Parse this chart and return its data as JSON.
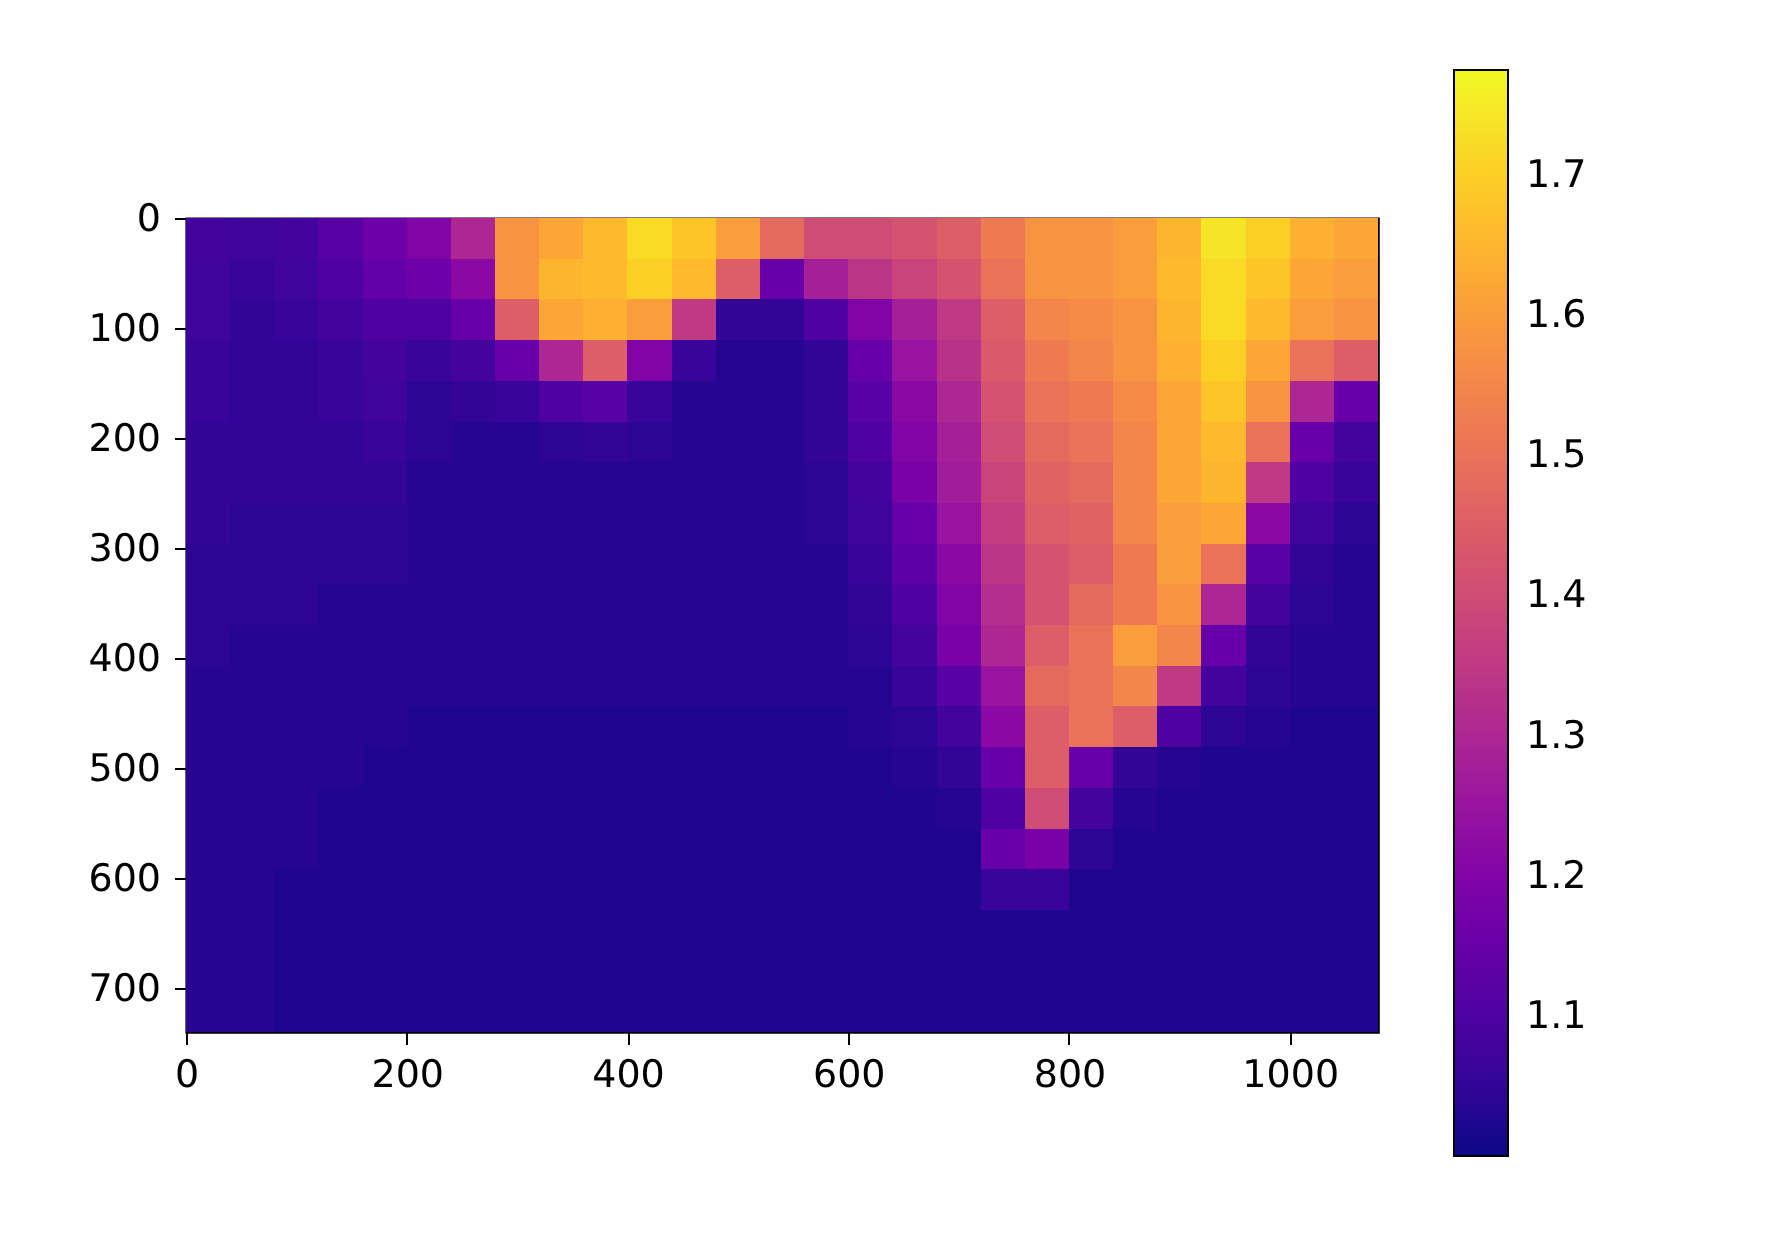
{
  "chart_data": {
    "type": "heatmap",
    "xlim": [
      0,
      1080
    ],
    "ylim": [
      740,
      0
    ],
    "xticks": [
      0,
      200,
      400,
      600,
      800,
      1000
    ],
    "yticks": [
      0,
      100,
      200,
      300,
      400,
      500,
      600,
      700
    ],
    "clim": [
      1.0,
      1.775
    ],
    "cticks": [
      1.1,
      1.2,
      1.3,
      1.4,
      1.5,
      1.6,
      1.7
    ],
    "cells": [
      [
        1.08,
        1.07,
        1.08,
        1.12,
        1.16,
        1.2,
        1.3,
        1.58,
        1.62,
        1.66,
        1.72,
        1.68,
        1.6,
        1.48,
        1.4,
        1.4,
        1.42,
        1.45,
        1.52,
        1.58,
        1.58,
        1.6,
        1.65,
        1.74,
        1.7,
        1.64,
        1.62
      ],
      [
        1.07,
        1.06,
        1.07,
        1.1,
        1.14,
        1.16,
        1.22,
        1.58,
        1.65,
        1.66,
        1.7,
        1.66,
        1.45,
        1.15,
        1.28,
        1.34,
        1.38,
        1.42,
        1.5,
        1.58,
        1.58,
        1.6,
        1.66,
        1.72,
        1.68,
        1.62,
        1.6
      ],
      [
        1.07,
        1.05,
        1.06,
        1.08,
        1.1,
        1.1,
        1.15,
        1.45,
        1.62,
        1.64,
        1.6,
        1.35,
        1.05,
        1.05,
        1.1,
        1.2,
        1.28,
        1.35,
        1.45,
        1.55,
        1.56,
        1.58,
        1.65,
        1.72,
        1.66,
        1.6,
        1.58
      ],
      [
        1.06,
        1.05,
        1.05,
        1.06,
        1.08,
        1.06,
        1.08,
        1.15,
        1.3,
        1.45,
        1.2,
        1.06,
        1.03,
        1.03,
        1.05,
        1.15,
        1.25,
        1.33,
        1.44,
        1.52,
        1.55,
        1.58,
        1.64,
        1.7,
        1.62,
        1.5,
        1.45
      ],
      [
        1.06,
        1.05,
        1.05,
        1.06,
        1.07,
        1.04,
        1.05,
        1.06,
        1.1,
        1.12,
        1.06,
        1.03,
        1.03,
        1.03,
        1.05,
        1.12,
        1.22,
        1.3,
        1.42,
        1.5,
        1.52,
        1.56,
        1.62,
        1.68,
        1.58,
        1.3,
        1.15
      ],
      [
        1.05,
        1.05,
        1.05,
        1.05,
        1.06,
        1.04,
        1.03,
        1.03,
        1.04,
        1.05,
        1.04,
        1.03,
        1.03,
        1.03,
        1.05,
        1.1,
        1.2,
        1.28,
        1.4,
        1.48,
        1.5,
        1.55,
        1.62,
        1.66,
        1.5,
        1.15,
        1.08
      ],
      [
        1.05,
        1.05,
        1.05,
        1.05,
        1.05,
        1.03,
        1.03,
        1.03,
        1.03,
        1.03,
        1.03,
        1.03,
        1.03,
        1.03,
        1.04,
        1.08,
        1.18,
        1.27,
        1.38,
        1.46,
        1.48,
        1.55,
        1.62,
        1.65,
        1.35,
        1.1,
        1.06
      ],
      [
        1.05,
        1.04,
        1.04,
        1.04,
        1.04,
        1.03,
        1.03,
        1.03,
        1.03,
        1.03,
        1.03,
        1.03,
        1.03,
        1.03,
        1.04,
        1.07,
        1.15,
        1.25,
        1.36,
        1.45,
        1.46,
        1.55,
        1.6,
        1.62,
        1.22,
        1.07,
        1.04
      ],
      [
        1.04,
        1.04,
        1.04,
        1.04,
        1.04,
        1.03,
        1.03,
        1.03,
        1.03,
        1.03,
        1.03,
        1.03,
        1.03,
        1.03,
        1.03,
        1.06,
        1.13,
        1.22,
        1.34,
        1.42,
        1.45,
        1.52,
        1.6,
        1.5,
        1.12,
        1.05,
        1.03
      ],
      [
        1.04,
        1.04,
        1.04,
        1.03,
        1.03,
        1.03,
        1.03,
        1.03,
        1.03,
        1.03,
        1.03,
        1.03,
        1.03,
        1.03,
        1.03,
        1.05,
        1.1,
        1.2,
        1.32,
        1.42,
        1.48,
        1.52,
        1.58,
        1.3,
        1.08,
        1.04,
        1.03
      ],
      [
        1.04,
        1.03,
        1.03,
        1.03,
        1.03,
        1.03,
        1.03,
        1.03,
        1.03,
        1.03,
        1.03,
        1.03,
        1.03,
        1.03,
        1.03,
        1.04,
        1.08,
        1.18,
        1.3,
        1.45,
        1.5,
        1.6,
        1.55,
        1.15,
        1.05,
        1.03,
        1.03
      ],
      [
        1.03,
        1.03,
        1.03,
        1.03,
        1.03,
        1.03,
        1.03,
        1.03,
        1.03,
        1.03,
        1.03,
        1.03,
        1.03,
        1.03,
        1.03,
        1.03,
        1.06,
        1.12,
        1.25,
        1.48,
        1.5,
        1.55,
        1.35,
        1.08,
        1.04,
        1.03,
        1.03
      ],
      [
        1.03,
        1.03,
        1.03,
        1.03,
        1.03,
        1.02,
        1.02,
        1.02,
        1.02,
        1.02,
        1.02,
        1.02,
        1.02,
        1.02,
        1.02,
        1.03,
        1.04,
        1.08,
        1.22,
        1.45,
        1.5,
        1.45,
        1.1,
        1.04,
        1.03,
        1.02,
        1.02
      ],
      [
        1.03,
        1.03,
        1.03,
        1.03,
        1.02,
        1.02,
        1.02,
        1.02,
        1.02,
        1.02,
        1.02,
        1.02,
        1.02,
        1.02,
        1.02,
        1.02,
        1.03,
        1.05,
        1.15,
        1.45,
        1.15,
        1.05,
        1.03,
        1.02,
        1.02,
        1.02,
        1.02
      ],
      [
        1.03,
        1.03,
        1.03,
        1.02,
        1.02,
        1.02,
        1.02,
        1.02,
        1.02,
        1.02,
        1.02,
        1.02,
        1.02,
        1.02,
        1.02,
        1.02,
        1.02,
        1.03,
        1.1,
        1.4,
        1.08,
        1.03,
        1.02,
        1.02,
        1.02,
        1.02,
        1.02
      ],
      [
        1.03,
        1.03,
        1.03,
        1.02,
        1.02,
        1.02,
        1.02,
        1.02,
        1.02,
        1.02,
        1.02,
        1.02,
        1.02,
        1.02,
        1.02,
        1.02,
        1.02,
        1.02,
        1.15,
        1.18,
        1.04,
        1.02,
        1.02,
        1.02,
        1.02,
        1.02,
        1.02
      ],
      [
        1.03,
        1.03,
        1.02,
        1.02,
        1.02,
        1.02,
        1.02,
        1.02,
        1.02,
        1.02,
        1.02,
        1.02,
        1.02,
        1.02,
        1.02,
        1.02,
        1.02,
        1.02,
        1.06,
        1.06,
        1.02,
        1.02,
        1.02,
        1.02,
        1.02,
        1.02,
        1.02
      ],
      [
        1.03,
        1.03,
        1.02,
        1.02,
        1.02,
        1.02,
        1.02,
        1.02,
        1.02,
        1.02,
        1.02,
        1.02,
        1.02,
        1.02,
        1.02,
        1.02,
        1.02,
        1.02,
        1.02,
        1.02,
        1.02,
        1.02,
        1.02,
        1.02,
        1.02,
        1.02,
        1.02
      ],
      [
        1.03,
        1.03,
        1.02,
        1.02,
        1.02,
        1.02,
        1.02,
        1.02,
        1.02,
        1.02,
        1.02,
        1.02,
        1.02,
        1.02,
        1.02,
        1.02,
        1.02,
        1.02,
        1.02,
        1.02,
        1.02,
        1.02,
        1.02,
        1.02,
        1.02,
        1.02,
        1.02
      ],
      [
        1.03,
        1.03,
        1.02,
        1.02,
        1.02,
        1.02,
        1.02,
        1.02,
        1.02,
        1.02,
        1.02,
        1.02,
        1.02,
        1.02,
        1.02,
        1.02,
        1.02,
        1.02,
        1.02,
        1.02,
        1.02,
        1.02,
        1.02,
        1.02,
        1.02,
        1.02,
        1.02
      ]
    ]
  }
}
